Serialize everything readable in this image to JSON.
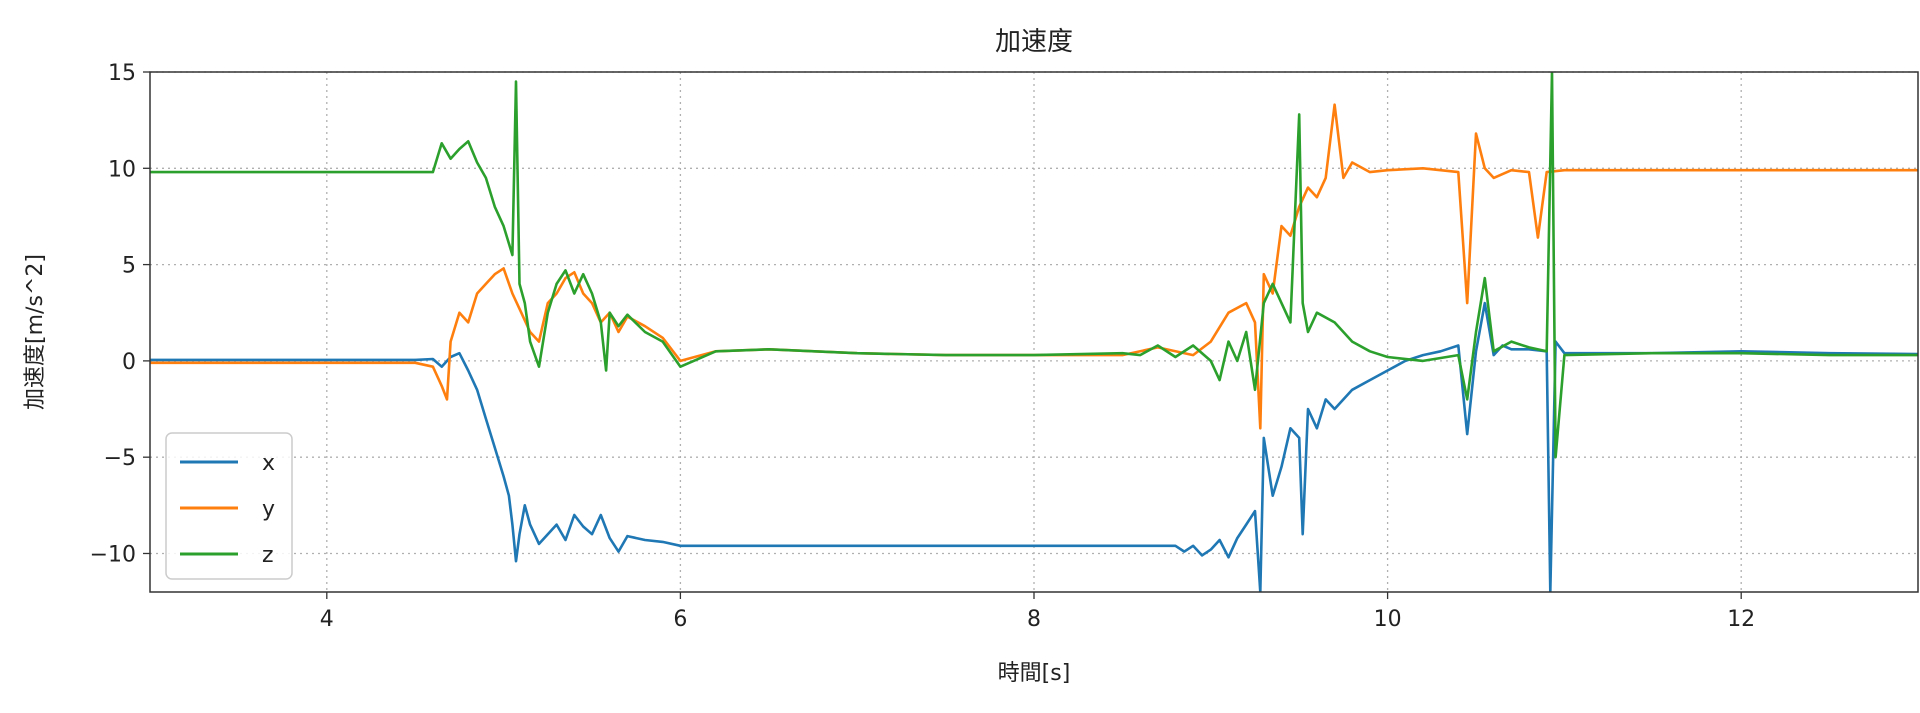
{
  "chart_data": {
    "type": "line",
    "title": "加速度",
    "xlabel": "時間[s]",
    "ylabel": "加速度[m/s^2]",
    "xlim": [
      3,
      13
    ],
    "ylim": [
      -12,
      15
    ],
    "x_ticks": [
      4,
      6,
      8,
      10,
      12
    ],
    "x_tick_labels": [
      "4",
      "6",
      "8",
      "10",
      "12"
    ],
    "y_ticks": [
      -10,
      -5,
      0,
      5,
      10,
      15
    ],
    "y_tick_labels": [
      "−10",
      "−5",
      "0",
      "5",
      "10",
      "15"
    ],
    "grid": true,
    "legend_position": "lower-left",
    "series": [
      {
        "name": "x",
        "color": "#1f77b4",
        "points": [
          [
            3.0,
            0.05
          ],
          [
            4.0,
            0.05
          ],
          [
            4.5,
            0.05
          ],
          [
            4.6,
            0.1
          ],
          [
            4.65,
            -0.3
          ],
          [
            4.7,
            0.2
          ],
          [
            4.75,
            0.4
          ],
          [
            4.8,
            -0.5
          ],
          [
            4.85,
            -1.5
          ],
          [
            4.9,
            -3.0
          ],
          [
            4.95,
            -4.5
          ],
          [
            5.0,
            -6.0
          ],
          [
            5.03,
            -7.0
          ],
          [
            5.05,
            -8.5
          ],
          [
            5.07,
            -10.4
          ],
          [
            5.09,
            -9.0
          ],
          [
            5.12,
            -7.5
          ],
          [
            5.15,
            -8.5
          ],
          [
            5.2,
            -9.5
          ],
          [
            5.25,
            -9.0
          ],
          [
            5.3,
            -8.5
          ],
          [
            5.35,
            -9.3
          ],
          [
            5.4,
            -8.0
          ],
          [
            5.45,
            -8.6
          ],
          [
            5.5,
            -9.0
          ],
          [
            5.55,
            -8.0
          ],
          [
            5.6,
            -9.2
          ],
          [
            5.65,
            -9.9
          ],
          [
            5.7,
            -9.1
          ],
          [
            5.8,
            -9.3
          ],
          [
            5.9,
            -9.4
          ],
          [
            6.0,
            -9.6
          ],
          [
            6.5,
            -9.6
          ],
          [
            7.0,
            -9.6
          ],
          [
            7.5,
            -9.6
          ],
          [
            8.0,
            -9.6
          ],
          [
            8.5,
            -9.6
          ],
          [
            8.8,
            -9.6
          ],
          [
            8.85,
            -9.9
          ],
          [
            8.9,
            -9.6
          ],
          [
            8.95,
            -10.1
          ],
          [
            9.0,
            -9.8
          ],
          [
            9.05,
            -9.3
          ],
          [
            9.1,
            -10.2
          ],
          [
            9.15,
            -9.2
          ],
          [
            9.2,
            -8.5
          ],
          [
            9.25,
            -7.8
          ],
          [
            9.28,
            -12.0
          ],
          [
            9.3,
            -4.0
          ],
          [
            9.35,
            -7.0
          ],
          [
            9.4,
            -5.5
          ],
          [
            9.45,
            -3.5
          ],
          [
            9.5,
            -4.0
          ],
          [
            9.52,
            -9.0
          ],
          [
            9.55,
            -2.5
          ],
          [
            9.6,
            -3.5
          ],
          [
            9.65,
            -2.0
          ],
          [
            9.7,
            -2.5
          ],
          [
            9.8,
            -1.5
          ],
          [
            9.9,
            -1.0
          ],
          [
            10.0,
            -0.5
          ],
          [
            10.1,
            0.0
          ],
          [
            10.2,
            0.3
          ],
          [
            10.3,
            0.5
          ],
          [
            10.4,
            0.8
          ],
          [
            10.45,
            -3.8
          ],
          [
            10.5,
            0.5
          ],
          [
            10.55,
            3.0
          ],
          [
            10.6,
            0.3
          ],
          [
            10.65,
            0.8
          ],
          [
            10.7,
            0.6
          ],
          [
            10.8,
            0.6
          ],
          [
            10.9,
            0.5
          ],
          [
            10.92,
            -12.0
          ],
          [
            10.95,
            1.0
          ],
          [
            11.0,
            0.4
          ],
          [
            11.5,
            0.4
          ],
          [
            12.0,
            0.5
          ],
          [
            12.5,
            0.4
          ],
          [
            13.0,
            0.35
          ]
        ]
      },
      {
        "name": "y",
        "color": "#ff7f0e",
        "points": [
          [
            3.0,
            -0.1
          ],
          [
            4.0,
            -0.1
          ],
          [
            4.5,
            -0.1
          ],
          [
            4.6,
            -0.3
          ],
          [
            4.65,
            -1.3
          ],
          [
            4.68,
            -2.0
          ],
          [
            4.7,
            1.0
          ],
          [
            4.75,
            2.5
          ],
          [
            4.8,
            2.0
          ],
          [
            4.85,
            3.5
          ],
          [
            4.9,
            4.0
          ],
          [
            4.95,
            4.5
          ],
          [
            5.0,
            4.8
          ],
          [
            5.05,
            3.5
          ],
          [
            5.1,
            2.5
          ],
          [
            5.15,
            1.5
          ],
          [
            5.2,
            1.0
          ],
          [
            5.25,
            3.0
          ],
          [
            5.3,
            3.5
          ],
          [
            5.35,
            4.3
          ],
          [
            5.4,
            4.6
          ],
          [
            5.45,
            3.5
          ],
          [
            5.5,
            3.0
          ],
          [
            5.55,
            2.0
          ],
          [
            5.6,
            2.5
          ],
          [
            5.65,
            1.5
          ],
          [
            5.7,
            2.3
          ],
          [
            5.8,
            1.8
          ],
          [
            5.9,
            1.2
          ],
          [
            6.0,
            0.0
          ],
          [
            6.2,
            0.5
          ],
          [
            6.5,
            0.6
          ],
          [
            7.0,
            0.4
          ],
          [
            7.5,
            0.3
          ],
          [
            8.0,
            0.3
          ],
          [
            8.5,
            0.3
          ],
          [
            8.7,
            0.7
          ],
          [
            8.9,
            0.3
          ],
          [
            9.0,
            1.0
          ],
          [
            9.1,
            2.5
          ],
          [
            9.2,
            3.0
          ],
          [
            9.25,
            2.0
          ],
          [
            9.28,
            -3.5
          ],
          [
            9.3,
            4.5
          ],
          [
            9.35,
            3.5
          ],
          [
            9.4,
            7.0
          ],
          [
            9.45,
            6.5
          ],
          [
            9.5,
            8.0
          ],
          [
            9.55,
            9.0
          ],
          [
            9.6,
            8.5
          ],
          [
            9.65,
            9.5
          ],
          [
            9.7,
            13.3
          ],
          [
            9.75,
            9.5
          ],
          [
            9.8,
            10.3
          ],
          [
            9.9,
            9.8
          ],
          [
            10.0,
            9.9
          ],
          [
            10.2,
            10.0
          ],
          [
            10.4,
            9.8
          ],
          [
            10.45,
            3.0
          ],
          [
            10.5,
            11.8
          ],
          [
            10.55,
            10.0
          ],
          [
            10.6,
            9.5
          ],
          [
            10.7,
            9.9
          ],
          [
            10.8,
            9.8
          ],
          [
            10.85,
            6.4
          ],
          [
            10.9,
            9.8
          ],
          [
            11.0,
            9.9
          ],
          [
            11.5,
            9.9
          ],
          [
            12.0,
            9.9
          ],
          [
            12.5,
            9.9
          ],
          [
            13.0,
            9.9
          ]
        ]
      },
      {
        "name": "z",
        "color": "#2ca02c",
        "points": [
          [
            3.0,
            9.8
          ],
          [
            4.0,
            9.8
          ],
          [
            4.5,
            9.8
          ],
          [
            4.6,
            9.8
          ],
          [
            4.65,
            11.3
          ],
          [
            4.7,
            10.5
          ],
          [
            4.75,
            11.0
          ],
          [
            4.8,
            11.4
          ],
          [
            4.85,
            10.3
          ],
          [
            4.9,
            9.5
          ],
          [
            4.95,
            8.0
          ],
          [
            5.0,
            7.0
          ],
          [
            5.05,
            5.5
          ],
          [
            5.07,
            14.5
          ],
          [
            5.09,
            4.0
          ],
          [
            5.12,
            3.0
          ],
          [
            5.15,
            1.0
          ],
          [
            5.2,
            -0.3
          ],
          [
            5.25,
            2.5
          ],
          [
            5.3,
            4.0
          ],
          [
            5.35,
            4.7
          ],
          [
            5.4,
            3.5
          ],
          [
            5.45,
            4.5
          ],
          [
            5.5,
            3.5
          ],
          [
            5.55,
            2.0
          ],
          [
            5.58,
            -0.5
          ],
          [
            5.6,
            2.5
          ],
          [
            5.65,
            1.8
          ],
          [
            5.7,
            2.4
          ],
          [
            5.8,
            1.5
          ],
          [
            5.9,
            1.0
          ],
          [
            6.0,
            -0.3
          ],
          [
            6.2,
            0.5
          ],
          [
            6.5,
            0.6
          ],
          [
            7.0,
            0.4
          ],
          [
            7.5,
            0.3
          ],
          [
            8.0,
            0.3
          ],
          [
            8.5,
            0.4
          ],
          [
            8.6,
            0.3
          ],
          [
            8.7,
            0.8
          ],
          [
            8.8,
            0.2
          ],
          [
            8.9,
            0.8
          ],
          [
            9.0,
            0.0
          ],
          [
            9.05,
            -1.0
          ],
          [
            9.1,
            1.0
          ],
          [
            9.15,
            0.0
          ],
          [
            9.2,
            1.5
          ],
          [
            9.25,
            -1.5
          ],
          [
            9.3,
            3.0
          ],
          [
            9.35,
            4.0
          ],
          [
            9.4,
            3.0
          ],
          [
            9.45,
            2.0
          ],
          [
            9.5,
            12.8
          ],
          [
            9.52,
            3.0
          ],
          [
            9.55,
            1.5
          ],
          [
            9.6,
            2.5
          ],
          [
            9.7,
            2.0
          ],
          [
            9.8,
            1.0
          ],
          [
            9.9,
            0.5
          ],
          [
            10.0,
            0.2
          ],
          [
            10.2,
            0.0
          ],
          [
            10.4,
            0.3
          ],
          [
            10.45,
            -2.0
          ],
          [
            10.5,
            1.5
          ],
          [
            10.55,
            4.3
          ],
          [
            10.6,
            0.5
          ],
          [
            10.7,
            1.0
          ],
          [
            10.8,
            0.7
          ],
          [
            10.9,
            0.5
          ],
          [
            10.93,
            15.0
          ],
          [
            10.95,
            -5.0
          ],
          [
            11.0,
            0.3
          ],
          [
            11.5,
            0.4
          ],
          [
            12.0,
            0.4
          ],
          [
            12.5,
            0.3
          ],
          [
            13.0,
            0.3
          ]
        ]
      }
    ]
  }
}
